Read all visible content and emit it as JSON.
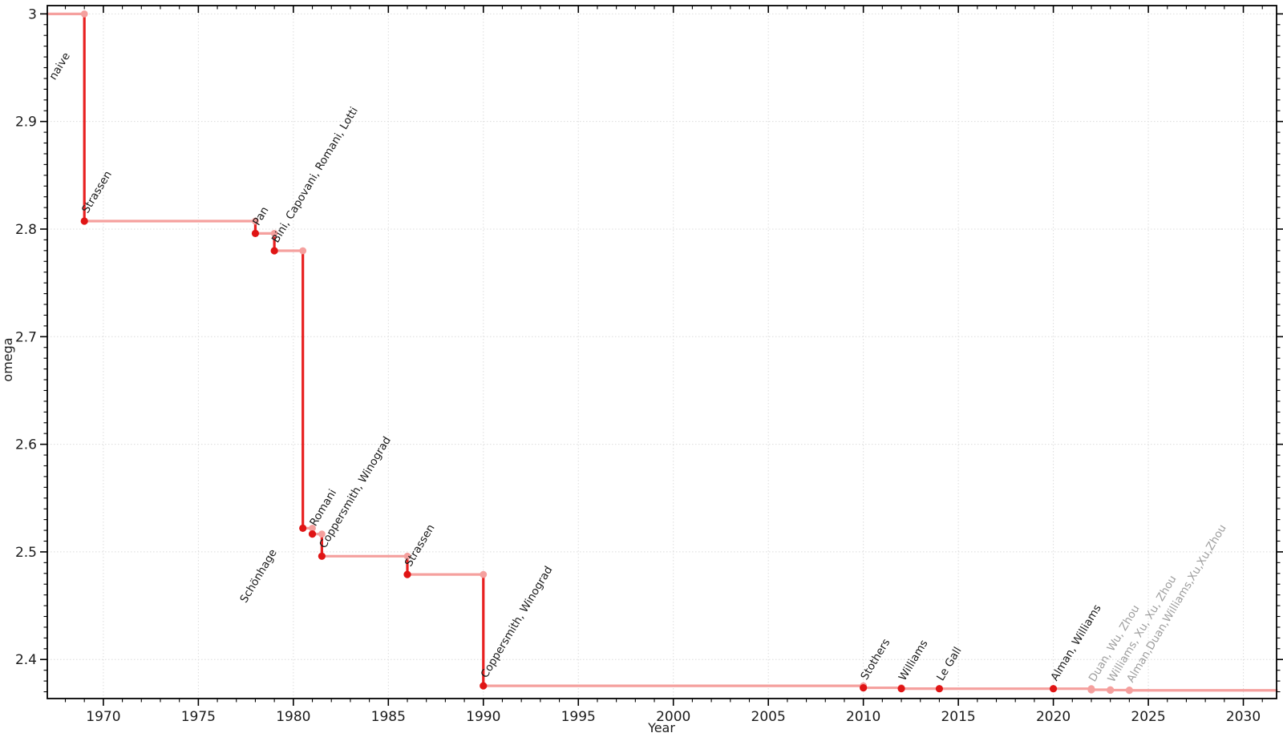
{
  "chart_data": {
    "type": "line",
    "subtype": "step",
    "title": "",
    "xlabel": "Year",
    "ylabel": "omega",
    "x_range": [
      1967.05,
      2031.75
    ],
    "y_range": [
      2.3637,
      3.0077
    ],
    "x_major_ticks": [
      1970,
      1975,
      1980,
      1985,
      1990,
      1995,
      2000,
      2005,
      2010,
      2015,
      2020,
      2025,
      2030
    ],
    "x_minor_step": 1,
    "y_major_ticks": [
      {
        "value": 3.0,
        "label": "3"
      },
      {
        "value": 2.9,
        "label": "2.9"
      },
      {
        "value": 2.8,
        "label": "2.8"
      },
      {
        "value": 2.7,
        "label": "2.7"
      },
      {
        "value": 2.6,
        "label": "2.6"
      },
      {
        "value": 2.5,
        "label": "2.5"
      },
      {
        "value": 2.4,
        "label": "2.4"
      }
    ],
    "y_minor_step": 0.01,
    "grid": {
      "show": true,
      "style": "dotted",
      "on": "major-ticks"
    },
    "legend": {
      "show": false
    },
    "start": {
      "label": "naive",
      "omega": 3.0,
      "label_anchor": {
        "year": 1967.45,
        "omega": 2.938
      }
    },
    "events": [
      {
        "label": "Strassen",
        "year": 1969,
        "omega": 2.8074,
        "recent": false
      },
      {
        "label": "Pan",
        "year": 1978,
        "omega": 2.796,
        "recent": false
      },
      {
        "label": "Bini, Capovani, Romani, Lotti",
        "year": 1979,
        "omega": 2.7799,
        "recent": false
      },
      {
        "label": "Schönhage",
        "year": 1980.5,
        "omega": 2.522,
        "recent": false,
        "label_anchor": {
          "year": 1977.5,
          "omega": 2.452
        }
      },
      {
        "label": "Romani",
        "year": 1981,
        "omega": 2.5166,
        "recent": false
      },
      {
        "label": "Coppersmith, Winograd",
        "year": 1981.5,
        "omega": 2.496,
        "recent": false
      },
      {
        "label": "Strassen",
        "year": 1986,
        "omega": 2.479,
        "recent": false
      },
      {
        "label": "Coppersmith, Winograd",
        "year": 1990,
        "omega": 2.3755,
        "recent": false
      },
      {
        "label": "Stothers",
        "year": 2010,
        "omega": 2.3737,
        "recent": false
      },
      {
        "label": "Williams",
        "year": 2012,
        "omega": 2.3729,
        "recent": false
      },
      {
        "label": "Le Gall",
        "year": 2014,
        "omega": 2.3728639,
        "recent": false
      },
      {
        "label": "Alman, Williams",
        "year": 2020,
        "omega": 2.3728596,
        "recent": false
      },
      {
        "label": "Duan, Wu, Zhou",
        "year": 2022,
        "omega": 2.371866,
        "recent": true
      },
      {
        "label": "Williams, Xu, Xu, Zhou",
        "year": 2023,
        "omega": 2.371552,
        "recent": true
      },
      {
        "label": "Alman,Duan,Williams,Xu,Xu,Zhou",
        "year": 2024,
        "omega": 2.371339,
        "recent": true
      }
    ],
    "colors": {
      "line_dark": "#e82020",
      "line_light": "#f5a09e",
      "marker_dark": "#e01515",
      "marker_light": "#f5a09e",
      "label_dark": "#1a1a1a",
      "label_recent": "#9e9e9e",
      "grid": "#dcdcdc",
      "axis": "#000000",
      "tick_text": "#1c1c1c",
      "background": "#ffffff"
    }
  }
}
